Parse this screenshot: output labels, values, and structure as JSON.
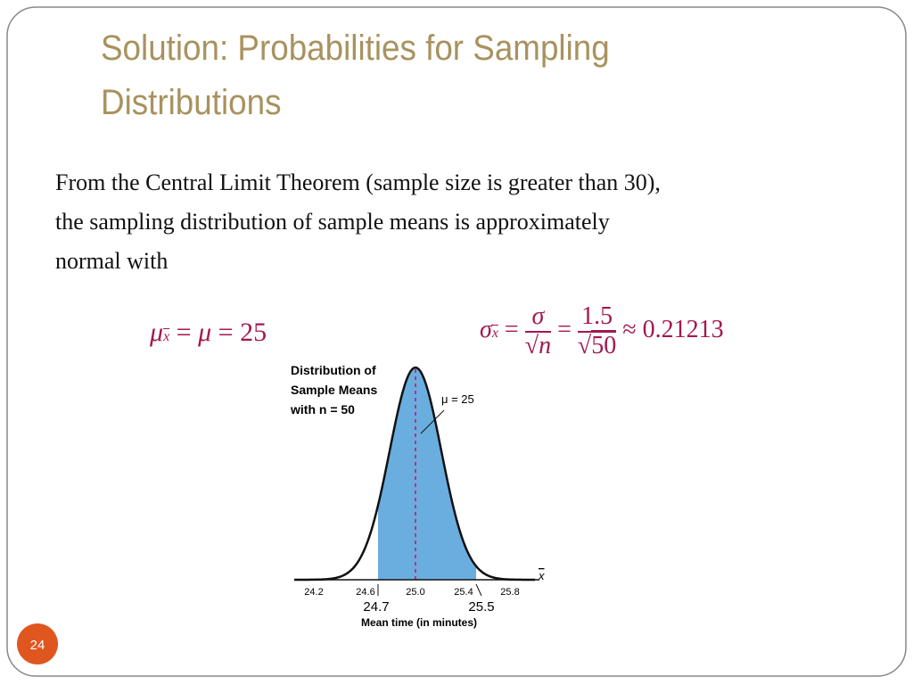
{
  "header": {
    "title_lines": [
      "Solution: Probabilities for Sampling",
      "Distributions"
    ]
  },
  "body": {
    "lines": [
      "From the Central Limit Theorem (sample size is greater than 30),",
      "the sampling distribution of sample means is approximately",
      "normal with"
    ]
  },
  "formula_mean": {
    "symbol": "μ",
    "subscript": "x",
    "eq1": "=",
    "symbol2": "μ",
    "eq2": "=",
    "value": "25"
  },
  "formula_sd": {
    "symbol": "σ",
    "subscript": "x",
    "eq1": "=",
    "numerator": "σ",
    "radical": "√",
    "denominator": "n",
    "eq2": "=",
    "numerator2": "1.5",
    "radical2": "√",
    "denominator2": "50",
    "result": "≈ 0.21213"
  },
  "figure": {
    "caption_lines": [
      "Distribution of",
      "Sample Means",
      "with n = 50"
    ],
    "mean_label": "μ = 25",
    "axis_symbol": "x",
    "ticks": [
      "24.2",
      "24.6",
      "25.0",
      "25.4",
      "25.8"
    ],
    "bounds": [
      "24.7",
      "25.5"
    ],
    "axis_label": "Mean time (in minutes)"
  },
  "footer": {
    "page_number": "24"
  }
}
